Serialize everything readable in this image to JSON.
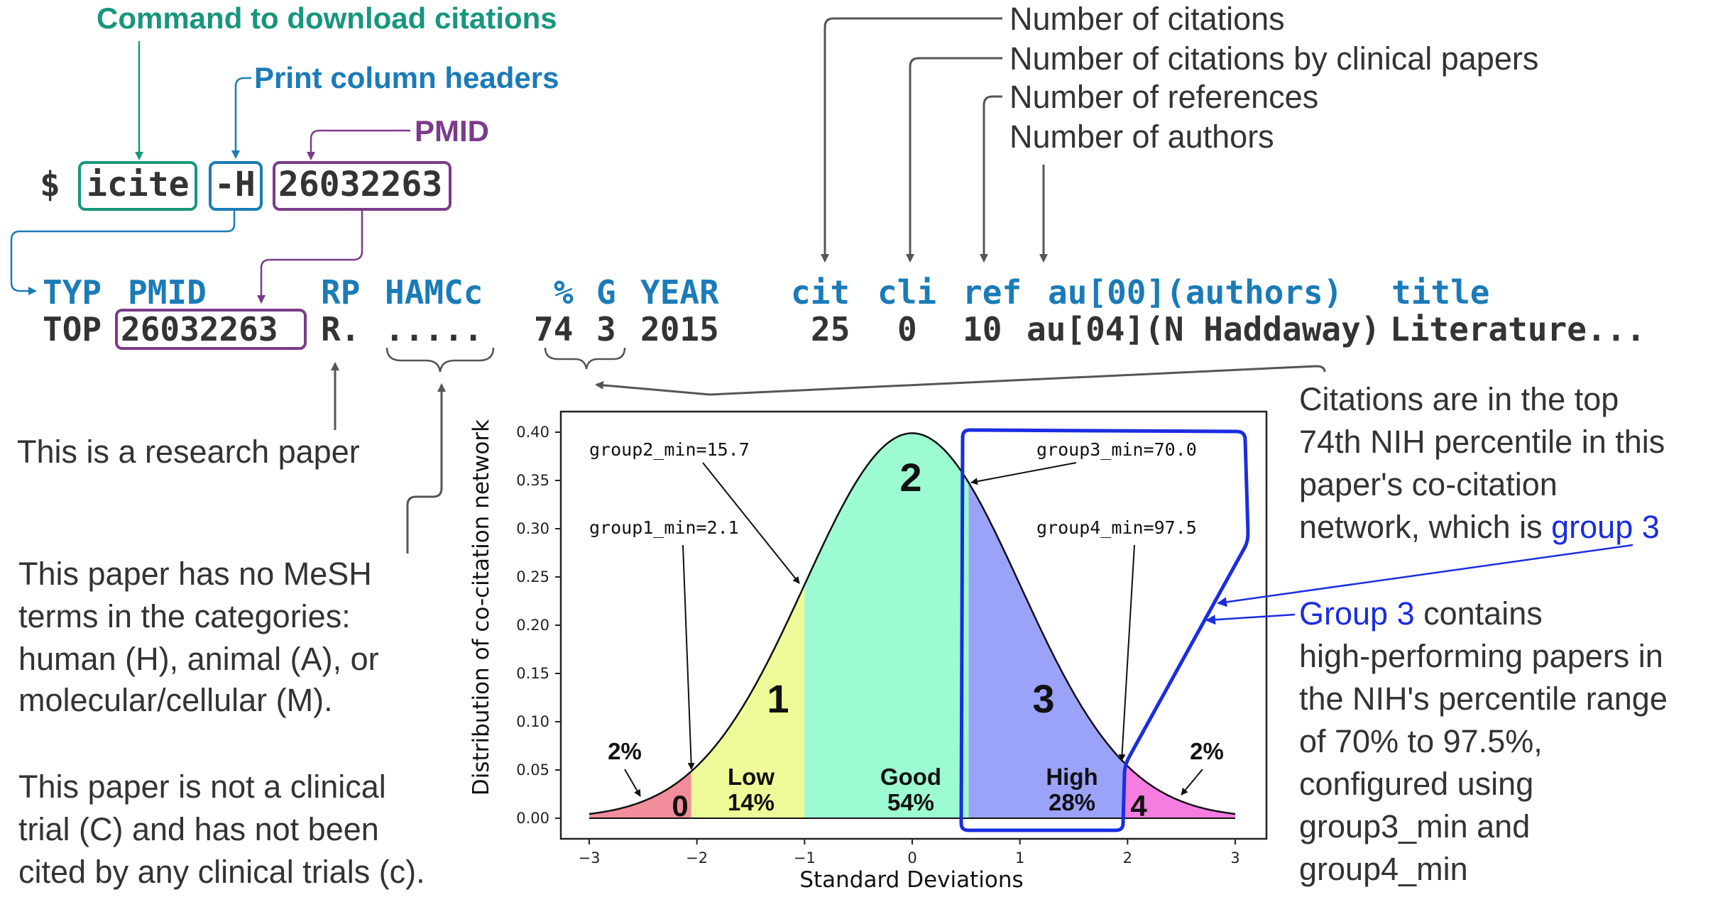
{
  "colors": {
    "teal": "#17967e",
    "blue": "#1a7bb8",
    "purple": "#7b3b8a",
    "text": "#333333",
    "arrow": "#555555",
    "pure_blue": "#1a2de0",
    "group0": "#f28e9b",
    "group1": "#eefa97",
    "group2": "#9cfbd2",
    "group3": "#9ba3f9",
    "group4": "#f57de0"
  },
  "callouts": {
    "download": "Command to download citations",
    "headers": "Print column headers",
    "pmid": "PMID",
    "num_citations": "Number of citations",
    "num_clinical": "Number of citations by clinical papers",
    "num_refs": "Number of references",
    "num_authors": "Number of authors"
  },
  "command": {
    "prompt": "$",
    "cmd": "icite",
    "flag": "-H",
    "pmid": "26032263"
  },
  "output": {
    "header": {
      "typ": "TYP",
      "pmid": "PMID",
      "rp": "RP",
      "hamcc": "HAMCc",
      "pct": "%",
      "g": "G",
      "year": "YEAR",
      "cit": "cit",
      "cli": "cli",
      "ref": "ref",
      "au": "au[00](authors)",
      "title": "title"
    },
    "row": {
      "typ": "TOP",
      "pmid": "26032263",
      "rp": "R.",
      "hamcc": ".....",
      "pct": "74",
      "g": "3",
      "year": "2015",
      "cit": "25",
      "cli": "0",
      "ref": "10",
      "au": "au[04](N Haddaway)",
      "title": "Literature..."
    }
  },
  "notes": {
    "research": "This is a research paper",
    "mesh": [
      "This paper has no MeSH",
      "terms in the categories:",
      "human (H), animal (A), or",
      "molecular/cellular (M)."
    ],
    "clinical": [
      "This paper is not a clinical",
      "trial (C) and has not been",
      "cited by any clinical trials (c)."
    ],
    "percentile_lines": [
      "Citations are in the top",
      "74th NIH percentile in this",
      "paper's co-citation"
    ],
    "percentile_last": "network, which is ",
    "percentile_group": "group 3",
    "group3_head": "Group 3",
    "group3_head_rest": " contains",
    "group3_lines": [
      "high-performing papers in",
      "the NIH's percentile range",
      "of 70% to 97.5%,",
      "configured using",
      "group3_min and",
      "group4_min"
    ]
  },
  "chart_data": {
    "type": "area",
    "title": "",
    "xlabel": "Standard Deviations",
    "ylabel": "Distribution of co-citation network",
    "xlim": [
      -3,
      3
    ],
    "ylim": [
      0,
      0.4
    ],
    "xticks": [
      "−3",
      "−2",
      "−1",
      "0",
      "1",
      "2",
      "3"
    ],
    "yticks": [
      "0.00",
      "0.05",
      "0.10",
      "0.15",
      "0.20",
      "0.25",
      "0.30",
      "0.35",
      "0.40"
    ],
    "curve": "standard normal density",
    "regions": [
      {
        "group": "0",
        "from": -3,
        "to": -2.054,
        "label": "",
        "pct": ""
      },
      {
        "group": "1",
        "from": -2.054,
        "to": -1,
        "label": "Low",
        "pct": "14%"
      },
      {
        "group": "2",
        "from": -1,
        "to": 0.524,
        "label": "Good",
        "pct": "54%"
      },
      {
        "group": "3",
        "from": 0.524,
        "to": 1.96,
        "label": "High",
        "pct": "28%"
      },
      {
        "group": "4",
        "from": 1.96,
        "to": 3,
        "label": "",
        "pct": ""
      }
    ],
    "tail_labels": {
      "left": "2%",
      "right": "2%"
    },
    "annotations": [
      {
        "text": "group2_min=15.7",
        "x": -1
      },
      {
        "text": "group1_min=2.1",
        "x": -2.054
      },
      {
        "text": "group3_min=70.0",
        "x": 0.524
      },
      {
        "text": "group4_min=97.5",
        "x": 1.96
      }
    ]
  }
}
